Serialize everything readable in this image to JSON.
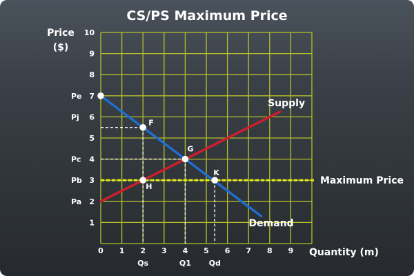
{
  "chart_data": {
    "type": "line",
    "title": "CS/PS Maximum Price",
    "xlabel": "Quantity (m)",
    "ylabel_line1": "Price",
    "ylabel_line2": "($)",
    "xlim": [
      0,
      10
    ],
    "ylim": [
      0,
      10
    ],
    "x_ticks": [
      0,
      1,
      2,
      3,
      4,
      5,
      6,
      7,
      8,
      9
    ],
    "y_ticks": [
      1,
      2,
      3,
      4,
      5,
      6,
      7,
      8,
      9,
      10
    ],
    "grid": true,
    "colors": {
      "grid": "#b7c12a",
      "supply": "#cc1f2b",
      "demand": "#1e6fd0",
      "max_price": "#e0e81a",
      "guides": "#ffffff",
      "text": "#ffffff"
    },
    "series": [
      {
        "name": "Supply",
        "x": [
          0,
          8.5
        ],
        "y": [
          2,
          6.25
        ]
      },
      {
        "name": "Demand",
        "x": [
          0,
          7.6
        ],
        "y": [
          7,
          1.3
        ]
      }
    ],
    "max_price": {
      "label": "Maximum Price",
      "y": 3
    },
    "points": [
      {
        "label": "",
        "x": 0,
        "y": 7
      },
      {
        "label": "F",
        "x": 2,
        "y": 5.5
      },
      {
        "label": "G",
        "x": 4,
        "y": 4
      },
      {
        "label": "H",
        "x": 2,
        "y": 3
      },
      {
        "label": "K",
        "x": 5.4,
        "y": 3
      }
    ],
    "price_labels": [
      {
        "label": "Pe",
        "y": 7
      },
      {
        "label": "Pj",
        "y": 6
      },
      {
        "label": "Pc",
        "y": 4
      },
      {
        "label": "Pb",
        "y": 3
      },
      {
        "label": "Pa",
        "y": 2
      }
    ],
    "quantity_labels": [
      {
        "label": "Qs",
        "x": 2
      },
      {
        "label": "Q1",
        "x": 4
      },
      {
        "label": "Qd",
        "x": 5.4
      }
    ],
    "guides": [
      {
        "x1": 0,
        "y1": 5.5,
        "x2": 2,
        "y2": 5.5
      },
      {
        "x1": 2,
        "y1": 5.5,
        "x2": 2,
        "y2": 0
      },
      {
        "x1": 0,
        "y1": 4,
        "x2": 4,
        "y2": 4
      },
      {
        "x1": 4,
        "y1": 4,
        "x2": 4,
        "y2": 0
      },
      {
        "x1": 5.4,
        "y1": 3,
        "x2": 5.4,
        "y2": 0
      }
    ]
  }
}
